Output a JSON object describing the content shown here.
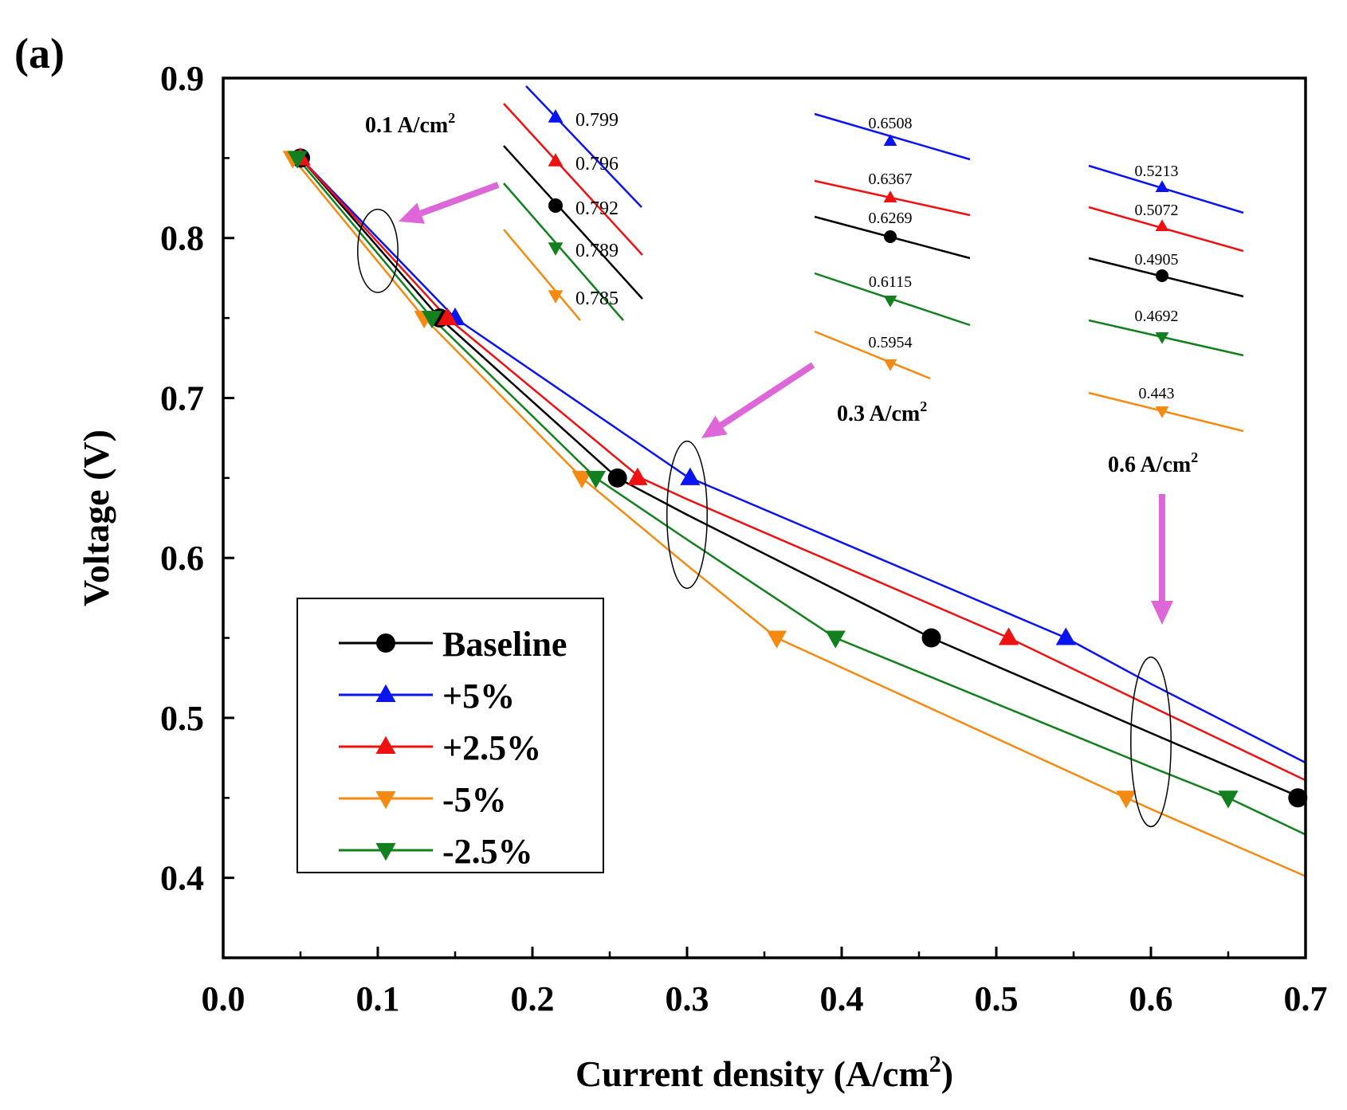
{
  "panel_label": "(a)",
  "colors": {
    "Baseline": "#000000",
    "+5%": "#0a14f0",
    "+2.5%": "#ee1111",
    "-5%": "#f58a12",
    "-2.5%": "#12801e",
    "arrow": "#dd66d8",
    "axis": "#000000"
  },
  "chart_data": {
    "type": "line",
    "title": "",
    "xlabel": "Current density (A/cm",
    "xlabel_sup": "2",
    "xlabel_end": ")",
    "ylabel": "Voltage (V)",
    "xlim": [
      0.0,
      0.7
    ],
    "ylim": [
      0.35,
      0.9
    ],
    "xticks": [
      0.0,
      0.1,
      0.2,
      0.3,
      0.4,
      0.5,
      0.6,
      0.7
    ],
    "xtick_labels": [
      "0.0",
      "0.1",
      "0.2",
      "0.3",
      "0.4",
      "0.5",
      "0.6",
      "0.7"
    ],
    "yticks": [
      0.4,
      0.5,
      0.6,
      0.7,
      0.8,
      0.9
    ],
    "ytick_labels": [
      "0.4",
      "0.5",
      "0.6",
      "0.7",
      "0.8",
      "0.9"
    ],
    "legend_position": "bottom-left",
    "series": [
      {
        "name": "Baseline",
        "marker": "circle",
        "line": [
          [
            0.05,
            0.85
          ],
          [
            0.14,
            0.75
          ],
          [
            0.255,
            0.65
          ],
          [
            0.3,
            0.627
          ],
          [
            0.458,
            0.55
          ],
          [
            0.6,
            0.4905
          ],
          [
            0.7,
            0.449
          ]
        ],
        "markers": [
          [
            0.05,
            0.85
          ],
          [
            0.14,
            0.75
          ],
          [
            0.255,
            0.65
          ],
          [
            0.458,
            0.55
          ],
          [
            0.695,
            0.45
          ]
        ]
      },
      {
        "name": "+5%",
        "marker": "triangle-up",
        "line": [
          [
            0.05,
            0.85
          ],
          [
            0.15,
            0.75
          ],
          [
            0.3,
            0.6508
          ],
          [
            0.545,
            0.55
          ],
          [
            0.6,
            0.5213
          ],
          [
            0.7,
            0.472
          ]
        ],
        "markers": [
          [
            0.05,
            0.85
          ],
          [
            0.15,
            0.75
          ],
          [
            0.302,
            0.65
          ],
          [
            0.545,
            0.55
          ]
        ]
      },
      {
        "name": "+2.5%",
        "marker": "triangle-up",
        "line": [
          [
            0.05,
            0.85
          ],
          [
            0.145,
            0.75
          ],
          [
            0.27,
            0.65
          ],
          [
            0.3,
            0.6367
          ],
          [
            0.508,
            0.55
          ],
          [
            0.6,
            0.5072
          ],
          [
            0.7,
            0.461
          ]
        ],
        "markers": [
          [
            0.05,
            0.85
          ],
          [
            0.145,
            0.75
          ],
          [
            0.268,
            0.65
          ],
          [
            0.508,
            0.55
          ]
        ]
      },
      {
        "name": "-5%",
        "marker": "triangle-down",
        "line": [
          [
            0.045,
            0.85
          ],
          [
            0.13,
            0.75
          ],
          [
            0.232,
            0.65
          ],
          [
            0.3,
            0.5954
          ],
          [
            0.358,
            0.55
          ],
          [
            0.584,
            0.45
          ],
          [
            0.6,
            0.443
          ],
          [
            0.7,
            0.401
          ]
        ],
        "markers": [
          [
            0.045,
            0.85
          ],
          [
            0.13,
            0.75
          ],
          [
            0.232,
            0.65
          ],
          [
            0.358,
            0.55
          ],
          [
            0.584,
            0.45
          ]
        ]
      },
      {
        "name": "-2.5%",
        "marker": "triangle-down",
        "line": [
          [
            0.048,
            0.85
          ],
          [
            0.135,
            0.75
          ],
          [
            0.241,
            0.65
          ],
          [
            0.3,
            0.6115
          ],
          [
            0.396,
            0.55
          ],
          [
            0.6,
            0.4692
          ],
          [
            0.65,
            0.45
          ],
          [
            0.7,
            0.427
          ]
        ],
        "markers": [
          [
            0.048,
            0.85
          ],
          [
            0.135,
            0.75
          ],
          [
            0.241,
            0.65
          ],
          [
            0.396,
            0.55
          ],
          [
            0.65,
            0.45
          ]
        ]
      }
    ],
    "annotations": [
      {
        "label": "0.1 A/cm",
        "label_sup": "2",
        "x": 0.1,
        "values": [
          {
            "series": "+5%",
            "value": "0.799"
          },
          {
            "series": "+2.5%",
            "value": "0.796"
          },
          {
            "series": "Baseline",
            "value": "0.792"
          },
          {
            "series": "-2.5%",
            "value": "0.789"
          },
          {
            "series": "-5%",
            "value": "0.785"
          }
        ]
      },
      {
        "label": "0.3 A/cm",
        "label_sup": "2",
        "x": 0.3,
        "values": [
          {
            "series": "+5%",
            "value": "0.6508"
          },
          {
            "series": "+2.5%",
            "value": "0.6367"
          },
          {
            "series": "Baseline",
            "value": "0.6269"
          },
          {
            "series": "-2.5%",
            "value": "0.6115"
          },
          {
            "series": "-5%",
            "value": "0.5954"
          }
        ]
      },
      {
        "label": "0.6 A/cm",
        "label_sup": "2",
        "x": 0.6,
        "values": [
          {
            "series": "+5%",
            "value": "0.5213"
          },
          {
            "series": "+2.5%",
            "value": "0.5072"
          },
          {
            "series": "Baseline",
            "value": "0.4905"
          },
          {
            "series": "-2.5%",
            "value": "0.4692"
          },
          {
            "series": "-5%",
            "value": "0.443"
          }
        ]
      }
    ]
  }
}
